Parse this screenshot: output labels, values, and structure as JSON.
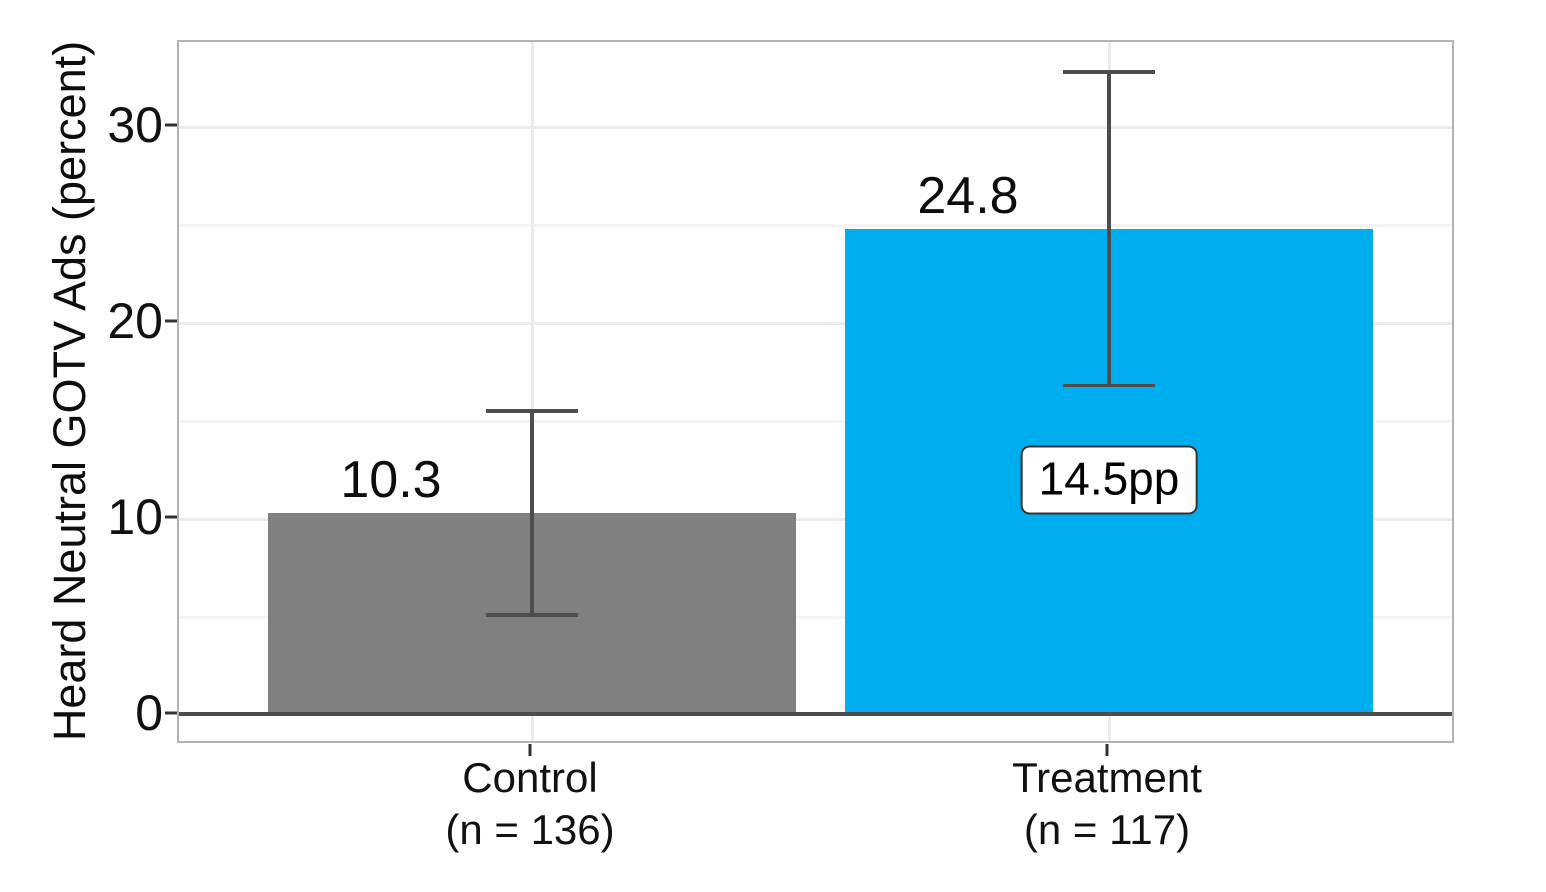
{
  "chart_data": {
    "type": "bar",
    "title": "",
    "ylabel": "Heard Neutral GOTV Ads (percent)",
    "xlabel": "",
    "yticks": [
      "0",
      "10",
      "20",
      "30"
    ],
    "ytick_values": [
      0,
      10,
      20,
      30
    ],
    "grid_major": [
      10,
      20,
      30
    ],
    "grid_minor": [
      5,
      15,
      25
    ],
    "ylim": [
      -1.5,
      34.3
    ],
    "legend": "none",
    "series": [
      {
        "label": "Control",
        "sublabel": "(n = 136)",
        "value": 10.3,
        "value_label": "10.3",
        "ci_low": 5.1,
        "ci_high": 15.5,
        "color": "#808080"
      },
      {
        "label": "Treatment",
        "sublabel": "(n = 117)",
        "value": 24.8,
        "value_label": "24.8",
        "ci_low": 16.8,
        "ci_high": 32.8,
        "color": "#00AEEF"
      }
    ],
    "annotation": {
      "text": "14.5pp",
      "on_category": "Treatment",
      "y": 12.0
    },
    "colors": {
      "control_bar": "#808080",
      "treatment_bar": "#00AEEF",
      "errorbar": "#4D4D4D",
      "zero_line": "#4D4D4D",
      "panel_border": "#B3B3B3",
      "grid_major": "#EBEBEB",
      "grid_minor": "#F4F4F4",
      "text": "#0D0D0D"
    }
  }
}
